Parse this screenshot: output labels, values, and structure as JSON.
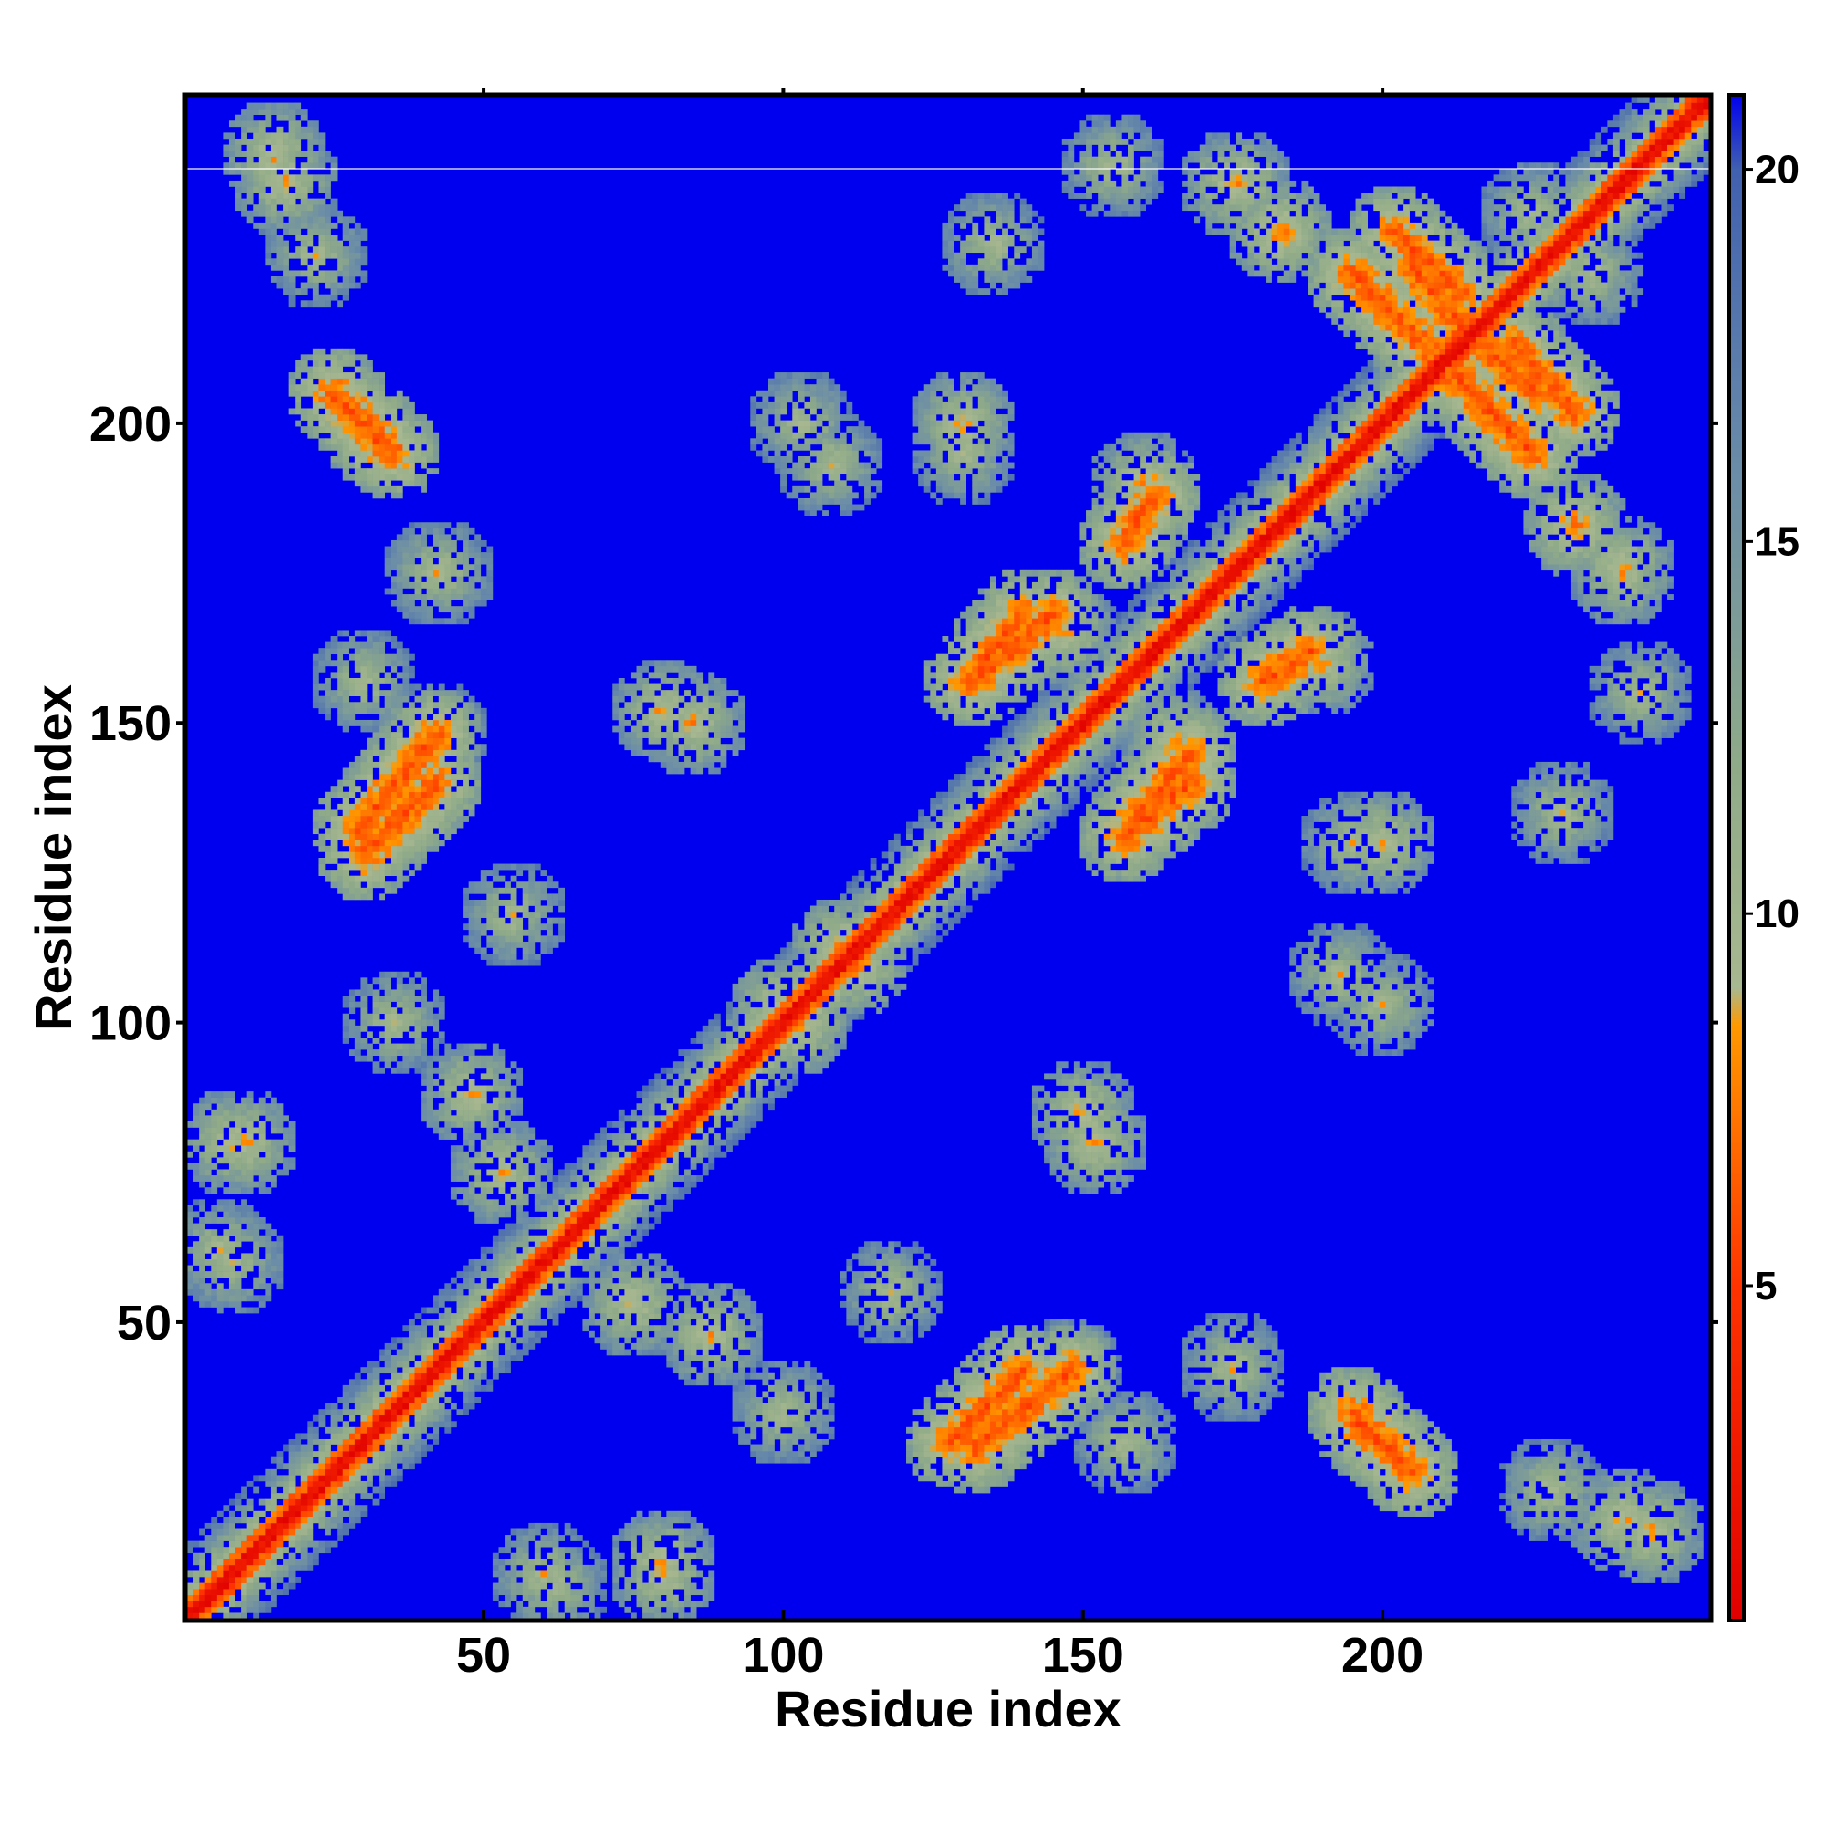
{
  "chart_data": {
    "type": "heatmap",
    "title": "",
    "xlabel": "Residue index",
    "ylabel": "Residue index",
    "xlim": [
      0.5,
      254.5
    ],
    "ylim": [
      0.5,
      254.5
    ],
    "x_ticks": [
      50,
      100,
      150,
      200
    ],
    "y_ticks": [
      50,
      100,
      150,
      200
    ],
    "x_tick_labels": [
      "50",
      "100",
      "150",
      "200"
    ],
    "y_tick_labels": [
      "50",
      "100",
      "150",
      "200"
    ],
    "colorbar": {
      "range": [
        0.5,
        21
      ],
      "ticks": [
        5,
        10,
        15,
        20
      ],
      "tick_labels": [
        "5",
        "10",
        "15",
        "20"
      ],
      "stops": [
        {
          "value": 0.5,
          "color": "#e00000"
        },
        {
          "value": 5,
          "color": "#ff3300"
        },
        {
          "value": 8.5,
          "color": "#ff9900"
        },
        {
          "value": 9,
          "color": "#a8b890"
        },
        {
          "value": 12,
          "color": "#8faa88"
        },
        {
          "value": 16,
          "color": "#6a8ca8"
        },
        {
          "value": 20,
          "color": "#4060b0"
        },
        {
          "value": 21,
          "color": "#0000ee"
        }
      ]
    },
    "background_color": "#0000ee",
    "grid": false,
    "diagonal_band": {
      "from": 1,
      "to": 254
    },
    "contact_features": [
      {
        "type": "blob",
        "x": 15,
        "y": 245,
        "value": 8
      },
      {
        "type": "blob",
        "x": 22,
        "y": 228,
        "value": 9
      },
      {
        "type": "segment",
        "x1": 25,
        "y1": 205,
        "x2": 33,
        "y2": 196,
        "value": 6
      },
      {
        "type": "blob",
        "x": 43,
        "y": 175,
        "value": 9
      },
      {
        "type": "segment",
        "x1": 29,
        "y1": 132,
        "x2": 42,
        "y2": 148,
        "value": 6
      },
      {
        "type": "blob",
        "x": 30,
        "y": 157,
        "value": 9
      },
      {
        "type": "blob",
        "x": 35,
        "y": 100,
        "value": 9
      },
      {
        "type": "blob",
        "x": 48,
        "y": 88,
        "value": 8
      },
      {
        "type": "blob",
        "x": 53,
        "y": 75,
        "value": 8
      },
      {
        "type": "blob",
        "x": 8,
        "y": 80,
        "value": 8
      },
      {
        "type": "blob",
        "x": 6,
        "y": 62,
        "value": 9
      },
      {
        "type": "blob",
        "x": 80,
        "y": 152,
        "value": 8
      },
      {
        "type": "blob",
        "x": 55,
        "y": 118,
        "value": 9
      },
      {
        "type": "blob",
        "x": 110,
        "y": 112,
        "value": 7
      },
      {
        "type": "blob",
        "x": 100,
        "y": 102,
        "value": 7
      },
      {
        "type": "segment",
        "x1": 131,
        "y1": 157,
        "x2": 140,
        "y2": 168,
        "value": 6
      },
      {
        "type": "segment",
        "x1": 158,
        "y1": 133,
        "x2": 168,
        "y2": 145,
        "value": 6
      },
      {
        "type": "blob",
        "x": 165,
        "y": 147,
        "value": 8
      },
      {
        "type": "blob",
        "x": 160,
        "y": 190,
        "value": 8
      },
      {
        "type": "blob",
        "x": 175,
        "y": 240,
        "value": 8
      },
      {
        "type": "segment",
        "x1": 205,
        "y1": 226,
        "x2": 215,
        "y2": 214,
        "value": 6
      },
      {
        "type": "segment",
        "x1": 222,
        "y1": 213,
        "x2": 232,
        "y2": 202,
        "value": 6
      },
      {
        "type": "segment",
        "x1": 212,
        "y1": 208,
        "x2": 225,
        "y2": 195,
        "value": 6
      },
      {
        "type": "blob",
        "x": 232,
        "y": 183,
        "value": 7
      },
      {
        "type": "blob",
        "x": 240,
        "y": 176,
        "value": 8
      },
      {
        "type": "segment",
        "x1": 180,
        "y1": 157,
        "x2": 188,
        "y2": 162,
        "value": 6
      },
      {
        "type": "segment",
        "x1": 128,
        "y1": 30,
        "x2": 140,
        "y2": 42,
        "value": 6
      },
      {
        "type": "segment",
        "x1": 195,
        "y1": 35,
        "x2": 205,
        "y2": 25,
        "value": 6
      },
      {
        "type": "blob",
        "x": 80,
        "y": 10,
        "value": 8
      },
      {
        "type": "blob",
        "x": 60,
        "y": 8,
        "value": 9
      },
      {
        "type": "blob",
        "x": 240,
        "y": 17,
        "value": 8
      },
      {
        "type": "blob",
        "x": 150,
        "y": 85,
        "value": 8
      },
      {
        "type": "blob",
        "x": 148,
        "y": 42,
        "value": 9
      },
      {
        "type": "blob",
        "x": 175,
        "y": 42,
        "value": 9
      },
      {
        "type": "blob",
        "x": 230,
        "y": 135,
        "value": 9
      },
      {
        "type": "blob",
        "x": 243,
        "y": 155,
        "value": 9
      },
      {
        "type": "blob",
        "x": 195,
        "y": 130,
        "value": 9
      },
      {
        "type": "blob",
        "x": 108,
        "y": 193,
        "value": 9
      },
      {
        "type": "blob",
        "x": 130,
        "y": 200,
        "value": 8
      },
      {
        "type": "blob",
        "x": 235,
        "y": 225,
        "value": 9
      },
      {
        "type": "blob",
        "x": 200,
        "y": 103,
        "value": 9
      }
    ]
  }
}
